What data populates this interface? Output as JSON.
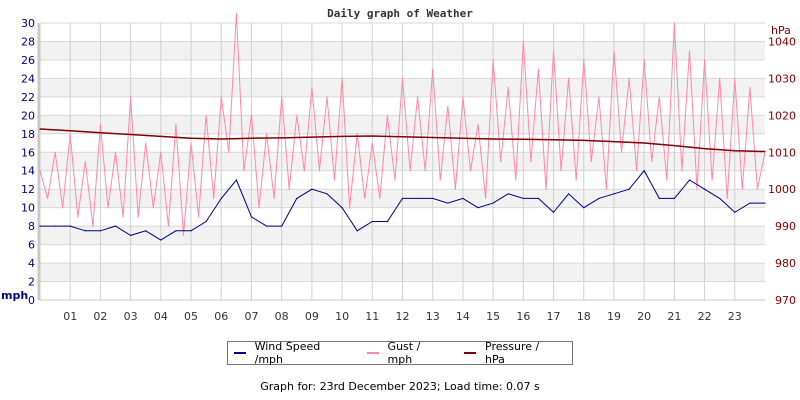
{
  "chart_data": {
    "type": "line",
    "title": "Daily graph of Weather",
    "x_unit": "hour of day",
    "x_ticks": [
      "01",
      "02",
      "03",
      "04",
      "05",
      "06",
      "07",
      "08",
      "09",
      "10",
      "11",
      "12",
      "13",
      "14",
      "15",
      "16",
      "17",
      "18",
      "19",
      "20",
      "21",
      "22",
      "23"
    ],
    "xlim": [
      0,
      24
    ],
    "left_axis": {
      "label": "mph",
      "ylim": [
        0,
        30
      ],
      "ticks": [
        0,
        2,
        4,
        6,
        8,
        10,
        12,
        14,
        16,
        18,
        20,
        22,
        24,
        26,
        28,
        30
      ],
      "color": "#000080"
    },
    "right_axis": {
      "label": "hPa",
      "ylim": [
        970,
        1045
      ],
      "ticks": [
        970,
        980,
        990,
        1000,
        1010,
        1020,
        1030,
        1040
      ],
      "color": "#800000"
    },
    "grid": true,
    "legend_position": "bottom",
    "series": [
      {
        "name": "Wind Speed /mph",
        "axis": "left",
        "color": "#000080",
        "x_step_hours": 0.5,
        "values": [
          8,
          8,
          8,
          7.5,
          7.5,
          8,
          7,
          7.5,
          6.5,
          7.5,
          7.5,
          8.5,
          11,
          13,
          9,
          8,
          8,
          11,
          12,
          11.5,
          10,
          7.5,
          8.5,
          8.5,
          11,
          11,
          11,
          10.5,
          11,
          10,
          10.5,
          11.5,
          11,
          11,
          9.5,
          11.5,
          10,
          11,
          11.5,
          12,
          14,
          11,
          11,
          13,
          12,
          11,
          9.5,
          10.5,
          10.5
        ]
      },
      {
        "name": "Gust / mph",
        "axis": "left",
        "color": "#ff88aa",
        "x_step_hours": 0.25,
        "values": [
          14,
          11,
          16,
          10,
          18,
          9,
          15,
          8,
          19,
          10,
          16,
          9,
          22,
          9,
          17,
          10,
          16,
          8,
          19,
          7,
          17,
          9,
          20,
          11,
          22,
          16,
          31,
          14,
          20,
          10,
          18,
          11,
          22,
          12,
          20,
          14,
          23,
          14,
          22,
          13,
          24,
          10,
          18,
          11,
          17,
          11,
          20,
          13,
          24,
          14,
          22,
          14,
          25,
          13,
          21,
          12,
          22,
          14,
          19,
          11,
          26,
          15,
          23,
          13,
          28,
          15,
          25,
          12,
          27,
          14,
          24,
          13,
          26,
          15,
          22,
          12,
          27,
          16,
          24,
          14,
          26,
          15,
          22,
          13,
          30,
          14,
          27,
          12,
          26,
          13,
          24,
          11,
          24,
          12,
          23,
          12,
          16
        ]
      },
      {
        "name": "Pressure / hPa",
        "axis": "right",
        "color": "#800000",
        "x_step_hours": 1,
        "values": [
          1016.3,
          1015.8,
          1015.3,
          1014.8,
          1014.3,
          1013.8,
          1013.6,
          1013.8,
          1013.9,
          1014.1,
          1014.3,
          1014.4,
          1014.2,
          1014.0,
          1013.8,
          1013.6,
          1013.5,
          1013.4,
          1013.2,
          1012.9,
          1012.5,
          1011.8,
          1011.0,
          1010.4,
          1010.2
        ]
      }
    ]
  },
  "footer": "Graph for: 23rd December 2023; Load time: 0.07 s"
}
